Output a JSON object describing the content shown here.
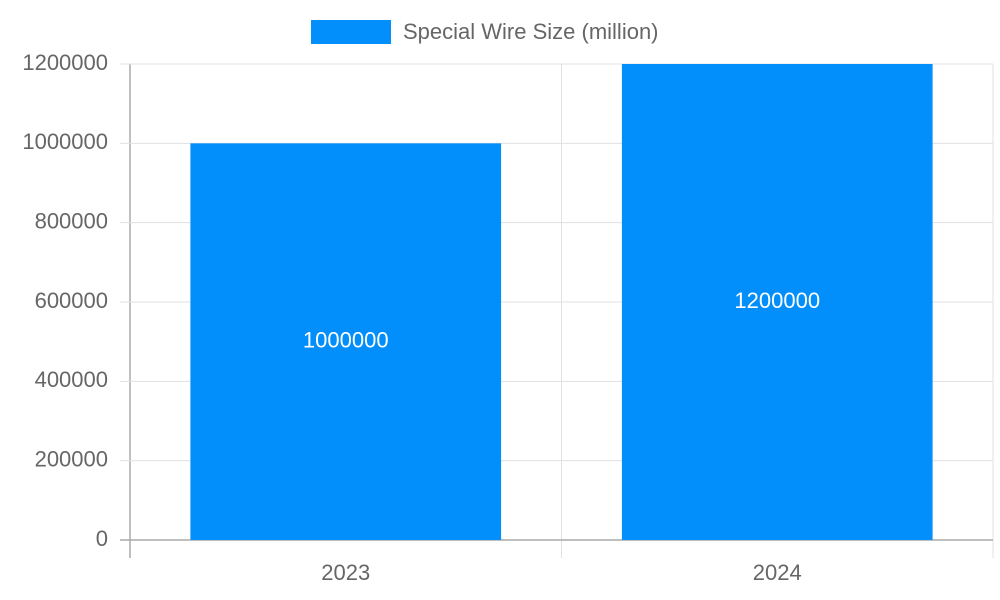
{
  "chart_data": {
    "type": "bar",
    "categories": [
      "2023",
      "2024"
    ],
    "series": [
      {
        "name": "Special Wire Size (million)",
        "color": "#038ffb",
        "values": [
          1000000,
          1200000
        ]
      }
    ],
    "ylim": [
      0,
      1200000
    ],
    "yticks": [
      0,
      200000,
      400000,
      600000,
      800000,
      1000000,
      1200000
    ],
    "grid": true,
    "legend": "top"
  }
}
